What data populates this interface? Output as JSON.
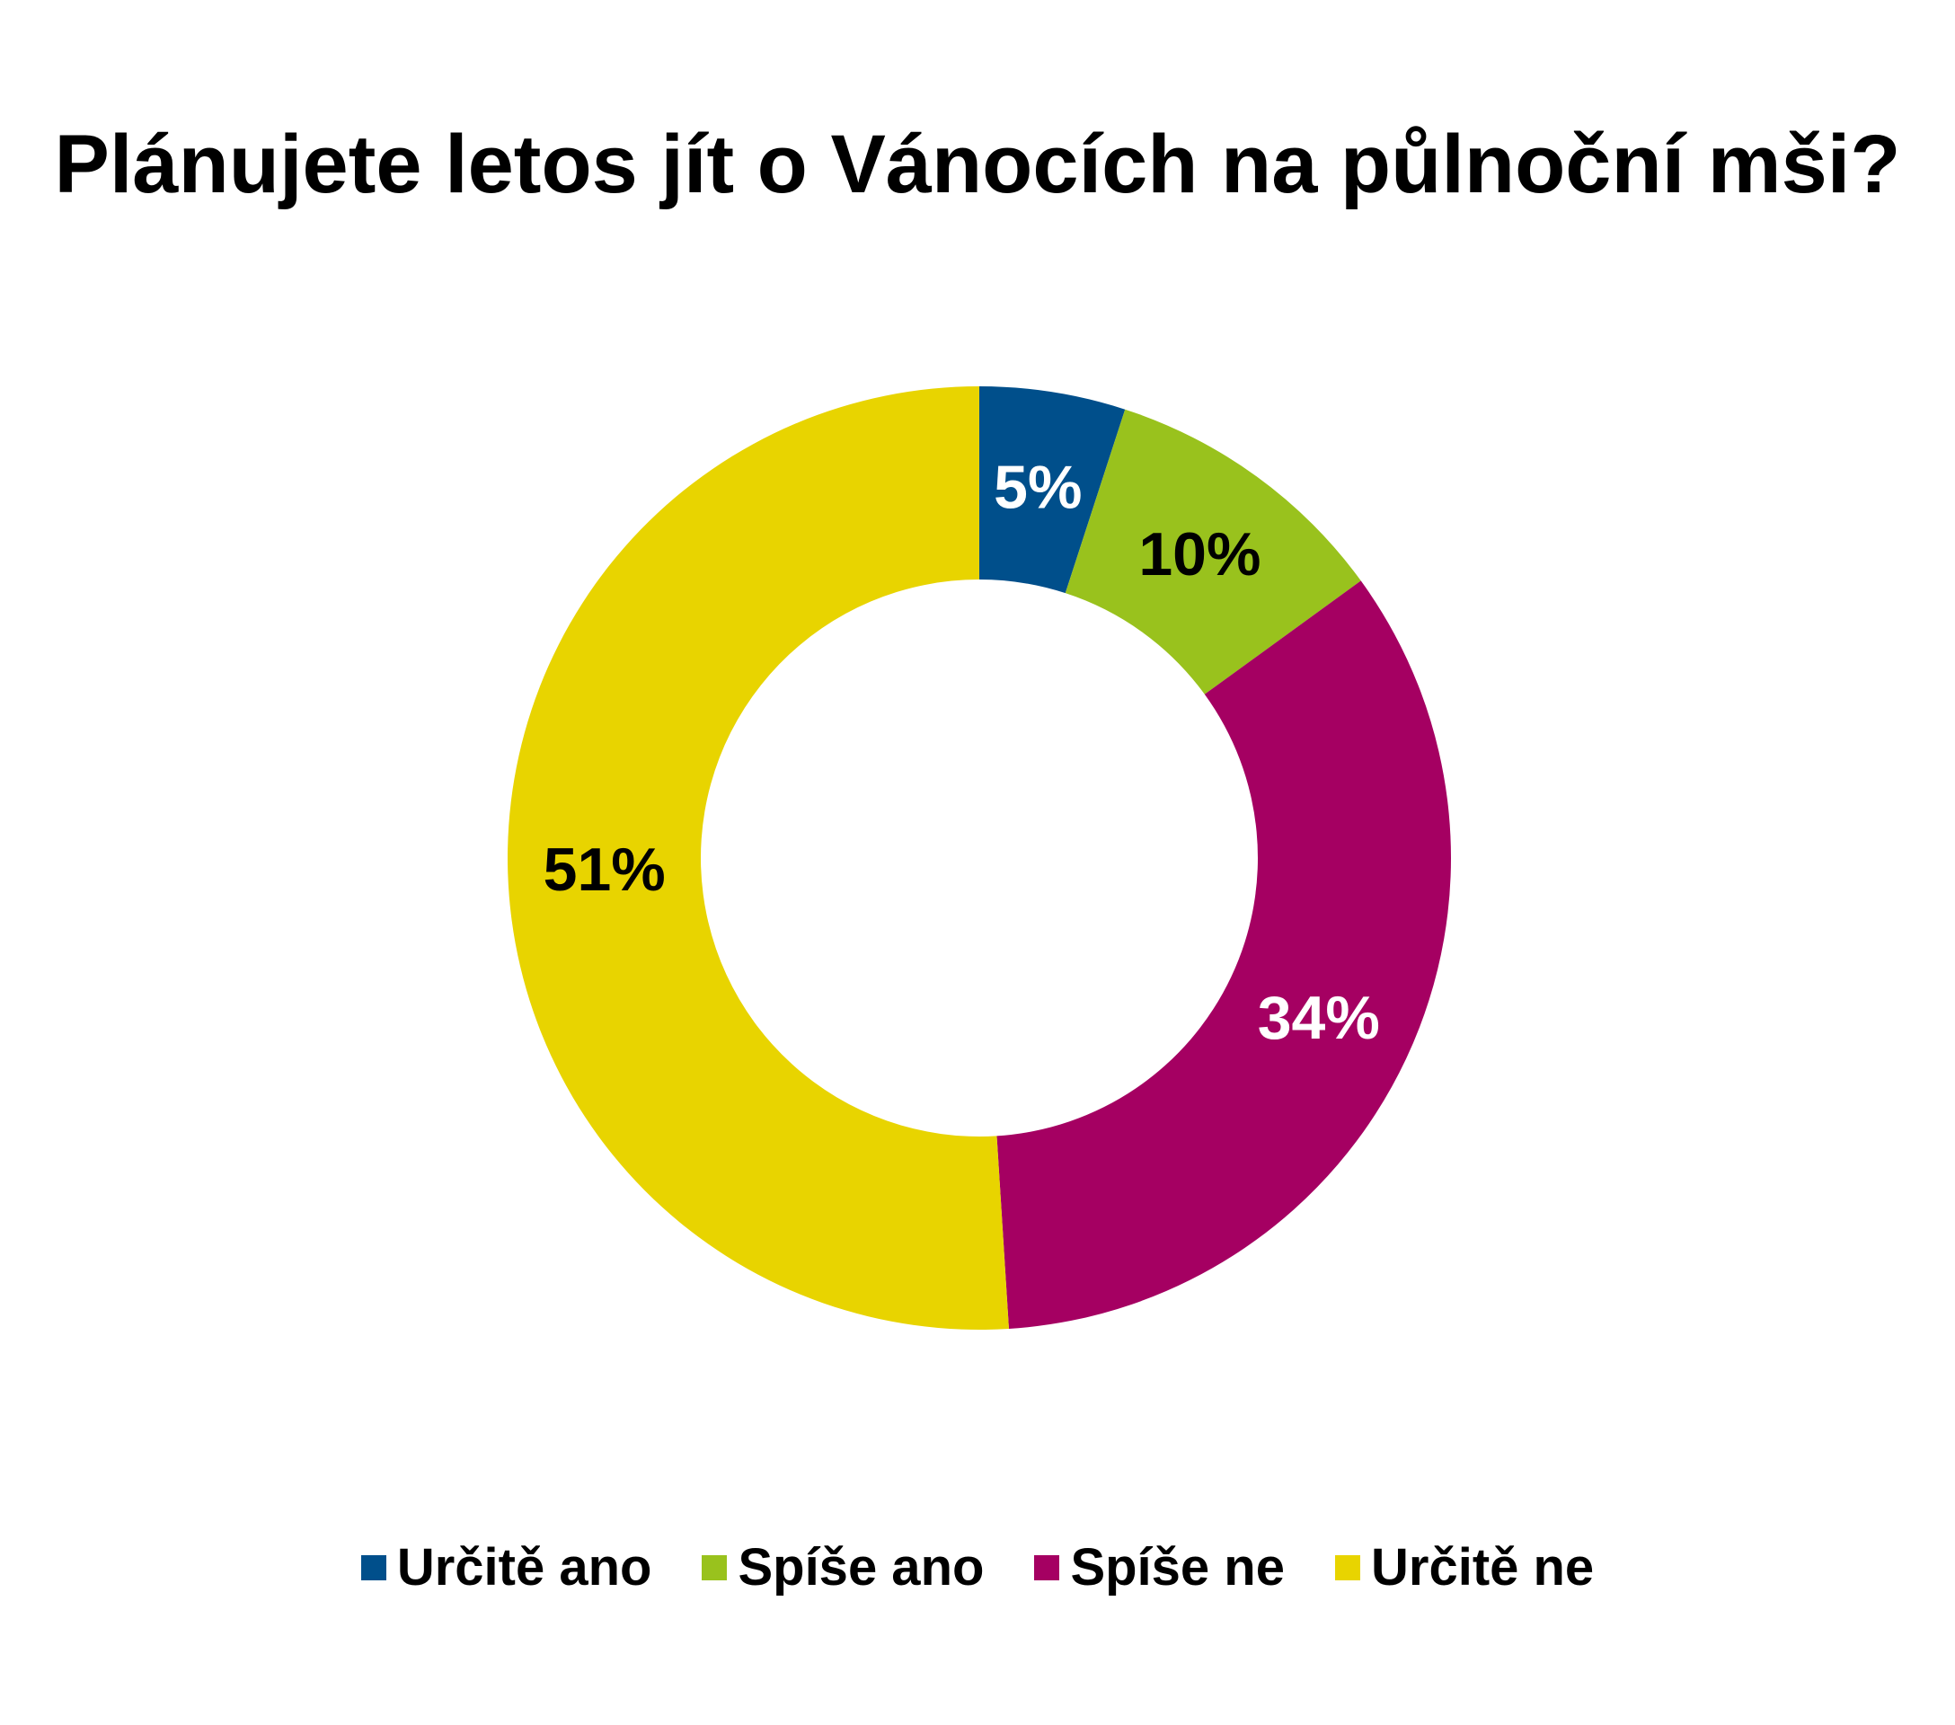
{
  "chart_data": {
    "type": "pie",
    "variant": "donut",
    "title": "Plánujete letos jít o Vánocích na půlnoční mši?",
    "legend_position": "bottom",
    "categories": [
      "Určitě ano",
      "Spíše ano",
      "Spíše ne",
      "Určitě ne"
    ],
    "values": [
      5,
      10,
      34,
      51
    ],
    "labels": [
      "5%",
      "10%",
      "34%",
      "51%"
    ],
    "colors": [
      "#004F8B",
      "#99C21D",
      "#A50062",
      "#E8D400"
    ],
    "label_colors": [
      "#ffffff",
      "#000000",
      "#ffffff",
      "#000000"
    ]
  }
}
